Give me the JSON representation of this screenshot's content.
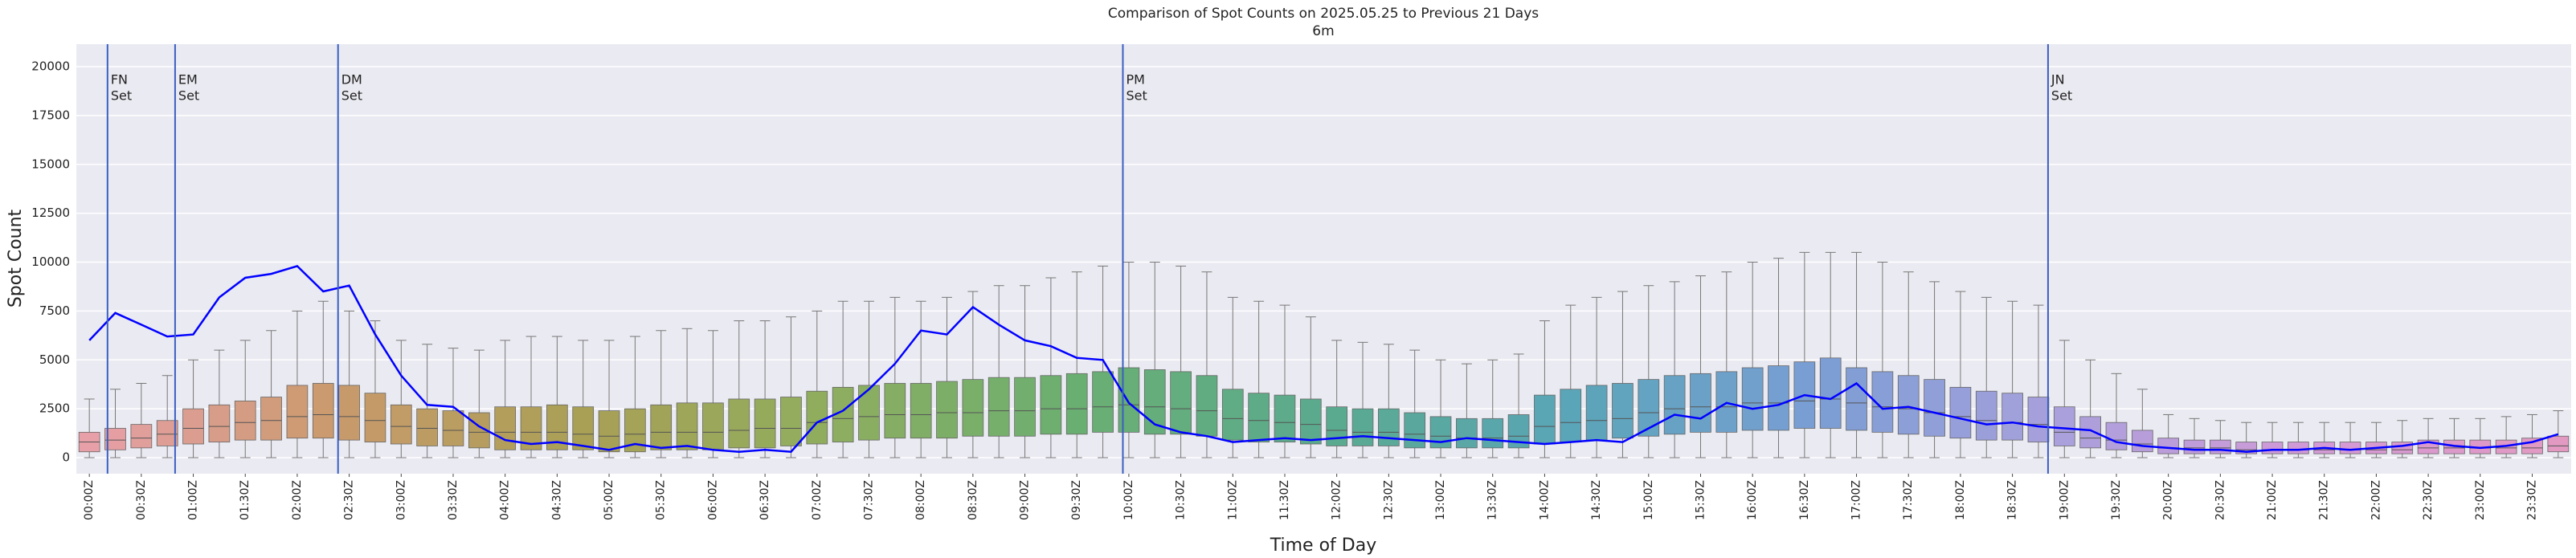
{
  "chart_data": {
    "type": "box",
    "title": "Comparison of Spot Counts on 2025.05.25 to Previous 21 Days",
    "subtitle": "6m",
    "x_label": "Time of Day",
    "y_label": "Spot Count",
    "ylim": [
      -820,
      21150
    ],
    "yticks": [
      0,
      2500,
      5000,
      7500,
      10000,
      12500,
      15000,
      17500,
      20000
    ],
    "grid": true,
    "palette": [
      "#e8a0a8",
      "#c99a6c",
      "#a9a055",
      "#8fae5f",
      "#6aaf72",
      "#5aaa8e",
      "#5aa5b8",
      "#7a9ed4",
      "#aaa0dc",
      "#d29ad6",
      "#e29ac2"
    ],
    "categories": [
      "00:00Z",
      null,
      "00:30Z",
      null,
      "01:00Z",
      null,
      "01:30Z",
      null,
      "02:00Z",
      null,
      "02:30Z",
      null,
      "03:00Z",
      null,
      "03:30Z",
      null,
      "04:00Z",
      null,
      "04:30Z",
      null,
      "05:00Z",
      null,
      "05:30Z",
      null,
      "06:00Z",
      null,
      "06:30Z",
      null,
      "07:00Z",
      null,
      "07:30Z",
      null,
      "08:00Z",
      null,
      "08:30Z",
      null,
      "09:00Z",
      null,
      "09:30Z",
      null,
      "10:00Z",
      null,
      "10:30Z",
      null,
      "11:00Z",
      null,
      "11:30Z",
      null,
      "12:00Z",
      null,
      "12:30Z",
      null,
      "13:00Z",
      null,
      "13:30Z",
      null,
      "14:00Z",
      null,
      "14:30Z",
      null,
      "15:00Z",
      null,
      "15:30Z",
      null,
      "16:00Z",
      null,
      "16:30Z",
      null,
      "17:00Z",
      null,
      "17:30Z",
      null,
      "18:00Z",
      null,
      "18:30Z",
      null,
      "19:00Z",
      null,
      "19:30Z",
      null,
      "20:00Z",
      null,
      "20:30Z",
      null,
      "21:00Z",
      null,
      "21:30Z",
      null,
      "22:00Z",
      null,
      "22:30Z",
      null,
      "23:00Z",
      null,
      "23:30Z",
      null
    ],
    "whislo": [
      0,
      0,
      0,
      0,
      0,
      0,
      0,
      0,
      0,
      0,
      0,
      0,
      0,
      0,
      0,
      0,
      0,
      0,
      0,
      0,
      0,
      0,
      0,
      0,
      0,
      0,
      0,
      0,
      0,
      0,
      0,
      0,
      0,
      0,
      0,
      0,
      0,
      0,
      0,
      0,
      0,
      0,
      0,
      0,
      0,
      0,
      0,
      0,
      0,
      0,
      0,
      0,
      0,
      0,
      0,
      0,
      0,
      0,
      0,
      0,
      0,
      0,
      0,
      0,
      0,
      0,
      0,
      0,
      0,
      0,
      0,
      0,
      0,
      0,
      0,
      0,
      0,
      0,
      0,
      0,
      0,
      0,
      0,
      0,
      0,
      0,
      0,
      0,
      0,
      0,
      0,
      0,
      0,
      0,
      0,
      0
    ],
    "q1": [
      300,
      400,
      500,
      600,
      700,
      800,
      900,
      900,
      1000,
      1000,
      900,
      800,
      700,
      600,
      600,
      500,
      400,
      400,
      400,
      400,
      300,
      300,
      400,
      400,
      400,
      500,
      500,
      600,
      700,
      800,
      900,
      1000,
      1000,
      1000,
      1100,
      1100,
      1100,
      1200,
      1200,
      1300,
      1300,
      1200,
      1200,
      1100,
      900,
      800,
      800,
      700,
      600,
      600,
      600,
      500,
      500,
      500,
      500,
      500,
      700,
      800,
      900,
      1000,
      1100,
      1200,
      1300,
      1300,
      1400,
      1400,
      1500,
      1500,
      1400,
      1300,
      1200,
      1100,
      1000,
      900,
      900,
      800,
      600,
      500,
      400,
      300,
      200,
      200,
      200,
      200,
      200,
      200,
      200,
      200,
      200,
      200,
      200,
      200,
      200,
      200,
      200,
      300
    ],
    "median": [
      800,
      900,
      1000,
      1200,
      1500,
      1600,
      1800,
      1900,
      2100,
      2200,
      2100,
      1900,
      1600,
      1500,
      1400,
      1300,
      1300,
      1300,
      1300,
      1200,
      1100,
      1200,
      1300,
      1300,
      1300,
      1400,
      1500,
      1500,
      1800,
      2000,
      2100,
      2200,
      2200,
      2300,
      2300,
      2400,
      2400,
      2500,
      2500,
      2600,
      2700,
      2600,
      2500,
      2400,
      2000,
      1900,
      1800,
      1700,
      1400,
      1300,
      1300,
      1200,
      1100,
      1000,
      1000,
      1100,
      1600,
      1800,
      1900,
      2000,
      2300,
      2500,
      2600,
      2600,
      2800,
      2800,
      2900,
      3000,
      2800,
      2600,
      2500,
      2300,
      2100,
      1900,
      1800,
      1700,
      1300,
      1000,
      900,
      700,
      500,
      500,
      500,
      400,
      400,
      400,
      400,
      400,
      400,
      400,
      500,
      500,
      500,
      500,
      500,
      600
    ],
    "q3": [
      1300,
      1500,
      1700,
      1900,
      2500,
      2700,
      2900,
      3100,
      3700,
      3800,
      3700,
      3300,
      2700,
      2500,
      2400,
      2300,
      2600,
      2600,
      2700,
      2600,
      2400,
      2500,
      2700,
      2800,
      2800,
      3000,
      3000,
      3100,
      3400,
      3600,
      3700,
      3800,
      3800,
      3900,
      4000,
      4100,
      4100,
      4200,
      4300,
      4400,
      4600,
      4500,
      4400,
      4200,
      3500,
      3300,
      3200,
      3000,
      2600,
      2500,
      2500,
      2300,
      2100,
      2000,
      2000,
      2200,
      3200,
      3500,
      3700,
      3800,
      4000,
      4200,
      4300,
      4400,
      4600,
      4700,
      4900,
      5100,
      4600,
      4400,
      4200,
      4000,
      3600,
      3400,
      3300,
      3100,
      2600,
      2100,
      1800,
      1400,
      1000,
      900,
      900,
      800,
      800,
      800,
      800,
      800,
      800,
      800,
      900,
      900,
      900,
      900,
      1000,
      1100
    ],
    "whishi": [
      3000,
      3500,
      3800,
      4200,
      5000,
      5500,
      6000,
      6500,
      7500,
      8000,
      7500,
      7000,
      6000,
      5800,
      5600,
      5500,
      6000,
      6200,
      6200,
      6000,
      6000,
      6200,
      6500,
      6600,
      6500,
      7000,
      7000,
      7200,
      7500,
      8000,
      8000,
      8200,
      8000,
      8200,
      8500,
      8800,
      8800,
      9200,
      9500,
      9800,
      10000,
      10000,
      9800,
      9500,
      8200,
      8000,
      7800,
      7200,
      6000,
      5900,
      5800,
      5500,
      5000,
      4800,
      5000,
      5300,
      7000,
      7800,
      8200,
      8500,
      8800,
      9000,
      9300,
      9500,
      10000,
      10200,
      10500,
      10500,
      10500,
      10000,
      9500,
      9000,
      8500,
      8200,
      8000,
      7800,
      6000,
      5000,
      4300,
      3500,
      2200,
      2000,
      1900,
      1800,
      1800,
      1800,
      1800,
      1800,
      1800,
      1900,
      2000,
      2000,
      2000,
      2100,
      2200,
      2400
    ],
    "series": [
      {
        "color": "#0000ff",
        "values": [
          6000,
          7400,
          6800,
          6200,
          6300,
          8200,
          9200,
          9400,
          9800,
          8500,
          8800,
          6300,
          4200,
          2700,
          2600,
          1600,
          900,
          700,
          800,
          600,
          400,
          700,
          500,
          600,
          400,
          300,
          400,
          300,
          1800,
          2400,
          3500,
          4800,
          6500,
          6300,
          7700,
          6800,
          6000,
          5700,
          5100,
          5000,
          2800,
          1700,
          1300,
          1100,
          800,
          900,
          1000,
          900,
          1000,
          1100,
          1000,
          900,
          800,
          1000,
          900,
          800,
          700,
          800,
          900,
          800,
          1500,
          2200,
          2000,
          2800,
          2500,
          2700,
          3200,
          3000,
          3800,
          2500,
          2600,
          2300,
          2000,
          1700,
          1800,
          1600,
          1500,
          1400,
          800,
          600,
          500,
          400,
          400,
          300,
          400,
          400,
          500,
          400,
          500,
          600,
          800,
          600,
          500,
          600,
          800,
          1200
        ]
      }
    ],
    "annotations": [
      {
        "x": 1.2,
        "text": [
          "FN",
          "Set"
        ],
        "color": "#3b5fc0"
      },
      {
        "x": 3.8,
        "text": [
          "EM",
          "Set"
        ],
        "color": "#3b5fc0"
      },
      {
        "x": 10.07,
        "text": [
          "DM",
          "Set"
        ],
        "color": "#3b5fc0"
      },
      {
        "x": 40.27,
        "text": [
          "PM",
          "Set"
        ],
        "color": "#3b5fc0"
      },
      {
        "x": 75.87,
        "text": [
          "JN",
          "Set"
        ],
        "color": "#3b5fc0"
      }
    ]
  }
}
